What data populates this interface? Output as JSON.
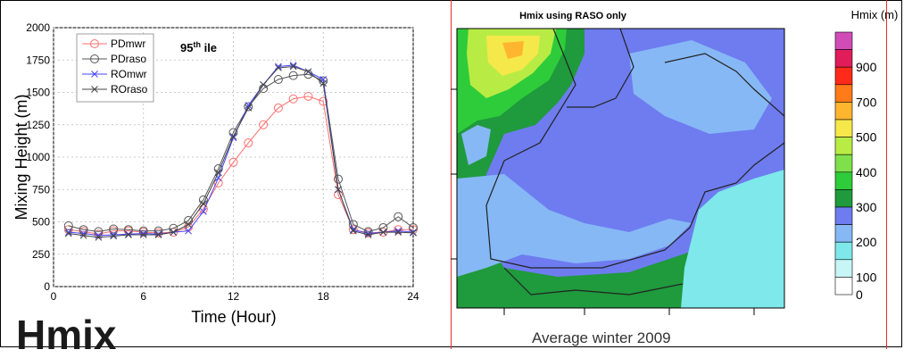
{
  "big_title": "Hmix",
  "caption": "Average winter 2009",
  "colors": {
    "PDmwr": "#ff6f6f",
    "PDraso": "#555555",
    "ROmwr": "#4444ff",
    "ROraso": "#444444",
    "separator": "#e03030"
  },
  "chart_data": [
    {
      "type": "line",
      "title": "",
      "annotation": {
        "base": "95",
        "superscript": "th",
        "tail": " ile"
      },
      "xlabel": "Time (Hour)",
      "ylabel": "Mixing Height (m)",
      "xlim": [
        0,
        24
      ],
      "ylim": [
        0,
        2000
      ],
      "xticks": [
        0,
        6,
        12,
        18,
        24
      ],
      "yticks": [
        0,
        250,
        500,
        750,
        1000,
        1250,
        1500,
        1750,
        2000
      ],
      "grid": true,
      "legend_position": "top-left",
      "x": [
        1,
        2,
        3,
        4,
        5,
        6,
        7,
        8,
        9,
        10,
        11,
        12,
        13,
        14,
        15,
        16,
        17,
        18,
        19,
        20,
        21,
        22,
        23,
        24
      ],
      "series": [
        {
          "name": "PDmwr",
          "marker": "circle",
          "values": [
            440,
            425,
            405,
            430,
            430,
            420,
            415,
            420,
            460,
            600,
            800,
            960,
            1110,
            1250,
            1380,
            1450,
            1470,
            1430,
            710,
            440,
            415,
            420,
            440,
            440
          ]
        },
        {
          "name": "PDraso",
          "marker": "circle",
          "values": [
            470,
            440,
            425,
            445,
            440,
            430,
            430,
            450,
            510,
            670,
            910,
            1190,
            1390,
            1530,
            1600,
            1630,
            1640,
            1590,
            830,
            480,
            425,
            455,
            540,
            455
          ]
        },
        {
          "name": "ROmwr",
          "marker": "x",
          "values": [
            420,
            410,
            395,
            400,
            405,
            410,
            405,
            420,
            430,
            580,
            840,
            1150,
            1400,
            1560,
            1700,
            1710,
            1660,
            1600,
            750,
            440,
            410,
            420,
            430,
            420
          ]
        },
        {
          "name": "ROraso",
          "marker": "x",
          "values": [
            410,
            395,
            380,
            390,
            400,
            400,
            400,
            420,
            480,
            640,
            880,
            1160,
            1380,
            1560,
            1690,
            1700,
            1660,
            1570,
            750,
            430,
            400,
            420,
            420,
            415
          ]
        }
      ]
    },
    {
      "type": "heatmap",
      "title": "Hmix using RASO only",
      "colorbar_label": "Hmix (m)",
      "colorbar_ticks": [
        0,
        100,
        200,
        300,
        400,
        500,
        700,
        900
      ],
      "levels": [
        {
          "color": "#ffffff"
        },
        {
          "color": "#c8f5f5"
        },
        {
          "color": "#7ee8ea"
        },
        {
          "color": "#86b8f5"
        },
        {
          "color": "#6e7cf0"
        },
        {
          "color": "#1f9a3c"
        },
        {
          "color": "#2ecc3a"
        },
        {
          "color": "#7ee04a"
        },
        {
          "color": "#b8ec44"
        },
        {
          "color": "#f5e84a"
        },
        {
          "color": "#ffb52e"
        },
        {
          "color": "#ff7a18"
        },
        {
          "color": "#ff2a1a"
        },
        {
          "color": "#e01c5a"
        },
        {
          "color": "#d24cb8"
        }
      ]
    }
  ]
}
